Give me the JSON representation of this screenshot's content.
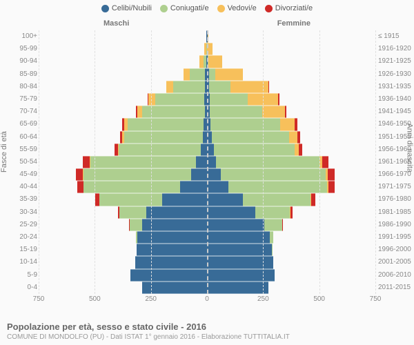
{
  "chart": {
    "type": "population-pyramid",
    "background": "#fafafa",
    "grid_color": "#e0e0e0",
    "center_line_color": "#cccccc",
    "legend": [
      {
        "label": "Celibi/Nubili",
        "color": "#386b97"
      },
      {
        "label": "Coniugati/e",
        "color": "#aecf8f"
      },
      {
        "label": "Vedovi/e",
        "color": "#f7c05b"
      },
      {
        "label": "Divorziati/e",
        "color": "#cf2a27"
      }
    ],
    "gender_left": "Maschi",
    "gender_right": "Femmine",
    "y_title_left": "Fasce di età",
    "y_title_right": "Anni di nascita",
    "x_max": 750,
    "x_ticks": [
      750,
      500,
      250,
      0,
      250,
      500,
      750
    ],
    "age_labels": [
      "100+",
      "95-99",
      "90-94",
      "85-89",
      "80-84",
      "75-79",
      "70-74",
      "65-69",
      "60-64",
      "55-59",
      "50-54",
      "45-49",
      "40-44",
      "35-39",
      "30-34",
      "25-29",
      "20-24",
      "15-19",
      "10-14",
      "5-9",
      "0-4"
    ],
    "birth_labels": [
      "≤ 1915",
      "1916-1920",
      "1921-1925",
      "1926-1930",
      "1931-1935",
      "1936-1940",
      "1941-1945",
      "1946-1950",
      "1951-1955",
      "1956-1960",
      "1961-1965",
      "1966-1970",
      "1971-1975",
      "1976-1980",
      "1981-1985",
      "1986-1990",
      "1991-1995",
      "1996-2000",
      "2001-2005",
      "2006-2010",
      "2011-2015"
    ],
    "rows": [
      {
        "m": [
          2,
          0,
          0,
          0
        ],
        "f": [
          3,
          0,
          4,
          0
        ]
      },
      {
        "m": [
          1,
          3,
          8,
          0
        ],
        "f": [
          1,
          0,
          25,
          0
        ]
      },
      {
        "m": [
          4,
          12,
          18,
          0
        ],
        "f": [
          3,
          4,
          60,
          0
        ]
      },
      {
        "m": [
          8,
          70,
          26,
          0
        ],
        "f": [
          8,
          30,
          122,
          0
        ]
      },
      {
        "m": [
          10,
          140,
          30,
          1
        ],
        "f": [
          10,
          95,
          168,
          3
        ]
      },
      {
        "m": [
          12,
          220,
          28,
          3
        ],
        "f": [
          12,
          170,
          135,
          6
        ]
      },
      {
        "m": [
          10,
          280,
          20,
          6
        ],
        "f": [
          12,
          235,
          100,
          8
        ]
      },
      {
        "m": [
          15,
          340,
          15,
          8
        ],
        "f": [
          16,
          310,
          65,
          12
        ]
      },
      {
        "m": [
          20,
          350,
          8,
          10
        ],
        "f": [
          22,
          345,
          35,
          14
        ]
      },
      {
        "m": [
          28,
          365,
          4,
          15
        ],
        "f": [
          30,
          360,
          18,
          16
        ]
      },
      {
        "m": [
          50,
          470,
          2,
          30
        ],
        "f": [
          40,
          460,
          12,
          30
        ]
      },
      {
        "m": [
          70,
          480,
          2,
          32
        ],
        "f": [
          60,
          470,
          8,
          32
        ]
      },
      {
        "m": [
          120,
          430,
          1,
          28
        ],
        "f": [
          95,
          440,
          5,
          30
        ]
      },
      {
        "m": [
          200,
          280,
          0,
          18
        ],
        "f": [
          160,
          300,
          3,
          20
        ]
      },
      {
        "m": [
          270,
          120,
          0,
          8
        ],
        "f": [
          215,
          155,
          1,
          10
        ]
      },
      {
        "m": [
          290,
          55,
          0,
          2
        ],
        "f": [
          255,
          80,
          0,
          4
        ]
      },
      {
        "m": [
          310,
          8,
          0,
          0
        ],
        "f": [
          280,
          15,
          0,
          0
        ]
      },
      {
        "m": [
          315,
          0,
          0,
          0
        ],
        "f": [
          290,
          2,
          0,
          0
        ]
      },
      {
        "m": [
          320,
          0,
          0,
          0
        ],
        "f": [
          295,
          0,
          0,
          0
        ]
      },
      {
        "m": [
          340,
          0,
          0,
          0
        ],
        "f": [
          300,
          0,
          0,
          0
        ]
      },
      {
        "m": [
          290,
          0,
          0,
          0
        ],
        "f": [
          275,
          0,
          0,
          0
        ]
      }
    ],
    "colors": [
      "#386b97",
      "#aecf8f",
      "#f7c05b",
      "#cf2a27"
    ],
    "footer_title": "Popolazione per età, sesso e stato civile - 2016",
    "footer_sub": "COMUNE DI MONDOLFO (PU) - Dati ISTAT 1° gennaio 2016 - Elaborazione TUTTITALIA.IT"
  }
}
